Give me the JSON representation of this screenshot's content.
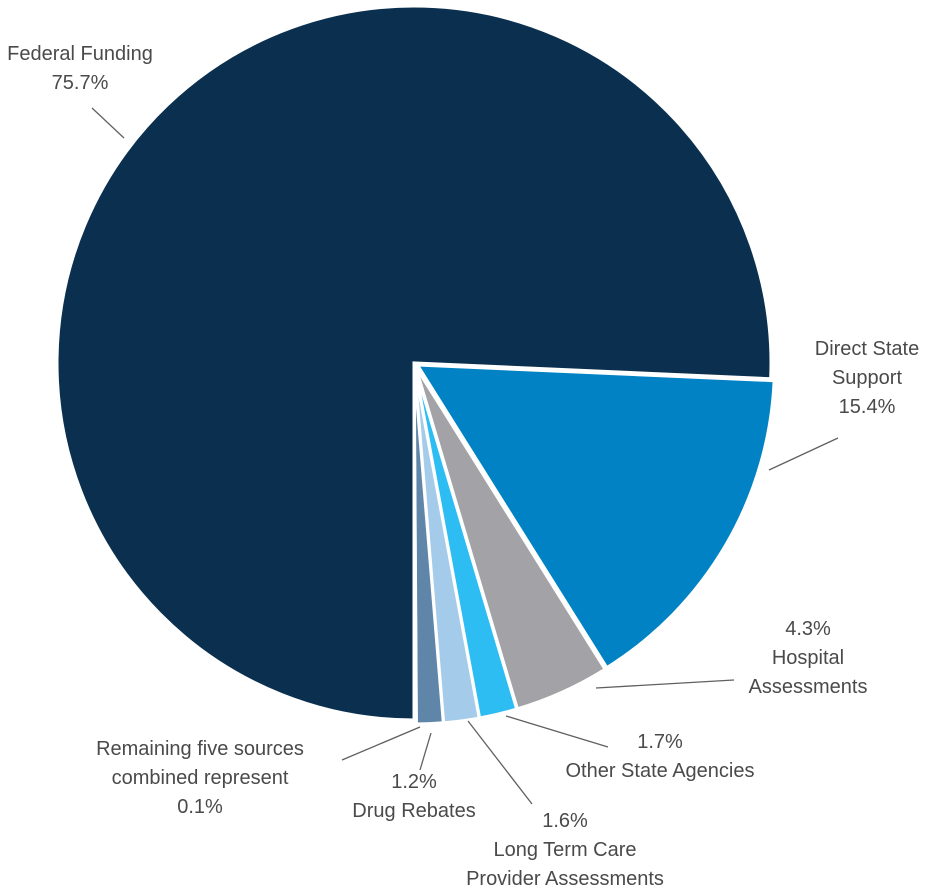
{
  "chart_data": {
    "type": "pie",
    "title": "",
    "slices": [
      {
        "name": "Federal Funding",
        "value": 75.7,
        "label_lines": [
          "Federal Funding",
          "75.7%"
        ],
        "color": "#0b304f"
      },
      {
        "name": "Direct State Support",
        "value": 15.4,
        "label_lines": [
          "Direct State",
          "Support",
          "15.4%"
        ],
        "color": "#0082c4"
      },
      {
        "name": "Hospital Assessments",
        "value": 4.3,
        "label_lines": [
          "4.3%",
          "Hospital",
          "Assessments"
        ],
        "color": "#a3a3a7"
      },
      {
        "name": "Other State Agencies",
        "value": 1.7,
        "label_lines": [
          "1.7%",
          "Other State Agencies"
        ],
        "color": "#2dbdf3"
      },
      {
        "name": "Long Term Care Provider Assessments",
        "value": 1.6,
        "label_lines": [
          "1.6%",
          "Long Term Care",
          "Provider Assessments"
        ],
        "color": "#a4cbea"
      },
      {
        "name": "Drug Rebates",
        "value": 1.2,
        "label_lines": [
          "1.2%",
          "Drug Rebates"
        ],
        "color": "#5f86a9"
      },
      {
        "name": "Remaining five sources combined represent",
        "value": 0.1,
        "label_lines": [
          "Remaining five sources",
          "combined represent",
          "0.1%"
        ],
        "color": "#0b304f"
      }
    ]
  }
}
